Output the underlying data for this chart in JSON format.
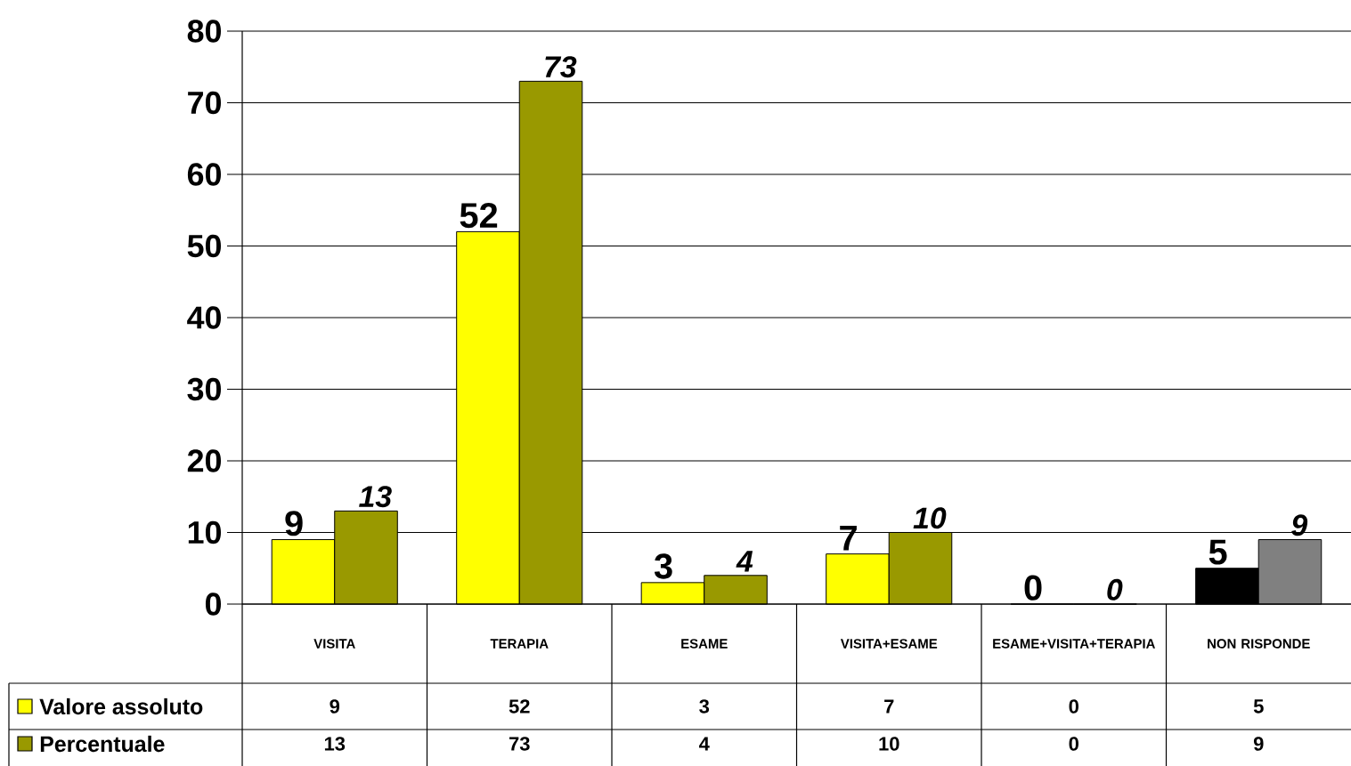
{
  "chart_data": {
    "type": "bar",
    "categories": [
      "VISITA",
      "TERAPIA",
      "ESAME",
      "VISITA+ESAME",
      "ESAME+VISITA+TERAPIA",
      "NON RISPONDE"
    ],
    "series": [
      {
        "name": "Valore assoluto",
        "color": "#ffff00",
        "colors": [
          "#ffff00",
          "#ffff00",
          "#ffff00",
          "#ffff00",
          "#ffff00",
          "#000000"
        ],
        "values": [
          9,
          52,
          3,
          7,
          0,
          5
        ],
        "value_labels": [
          "9",
          "52",
          "3",
          "7",
          "0",
          "5"
        ]
      },
      {
        "name": "Percentuale",
        "color": "#999900",
        "colors": [
          "#999900",
          "#999900",
          "#999900",
          "#999900",
          "#999900",
          "#808080"
        ],
        "values": [
          13,
          73,
          4,
          10,
          0,
          9
        ],
        "value_labels": [
          "13",
          "73",
          "4",
          "10",
          "0",
          "9"
        ]
      }
    ],
    "ylim": [
      0,
      80
    ],
    "yticks": [
      0,
      10,
      20,
      30,
      40,
      50,
      60,
      70,
      80
    ],
    "grid": "y",
    "legend": "bottom",
    "annotations": [
      "9",
      "52",
      "3",
      "7",
      "0",
      "5",
      "13",
      "73",
      "4",
      "10",
      "0",
      "9"
    ]
  }
}
